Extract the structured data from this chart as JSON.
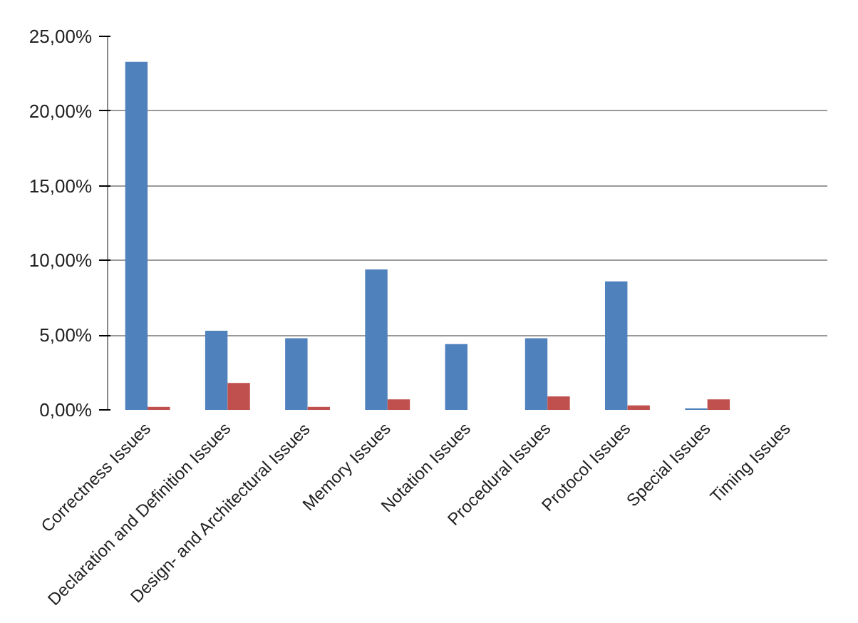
{
  "chart_data": {
    "type": "bar",
    "categories": [
      "Correctness Issues",
      "Declaration and Definition Issues",
      "Design- and Architectural Issues",
      "Memory Issues",
      "Notation Issues",
      "Procedural Issues",
      "Protocol Issues",
      "Special Issues",
      "Timing Issues"
    ],
    "series": [
      {
        "color": "#4f81bd",
        "values": [
          23.3,
          5.3,
          4.8,
          9.4,
          4.4,
          4.8,
          8.6,
          0.1,
          0
        ]
      },
      {
        "color": "#c0504d",
        "values": [
          0.2,
          1.8,
          0.2,
          0.7,
          0,
          0.9,
          0.3,
          0.7,
          0
        ]
      }
    ],
    "ylim": [
      0,
      25
    ],
    "yticks": [
      {
        "value": 0,
        "label": "0,00%"
      },
      {
        "value": 5,
        "label": "5,00%"
      },
      {
        "value": 10,
        "label": "10,00%"
      },
      {
        "value": 15,
        "label": "15,00%"
      },
      {
        "value": 20,
        "label": "20,00%"
      },
      {
        "value": 25,
        "label": "25,00%"
      }
    ],
    "grid": "y"
  }
}
